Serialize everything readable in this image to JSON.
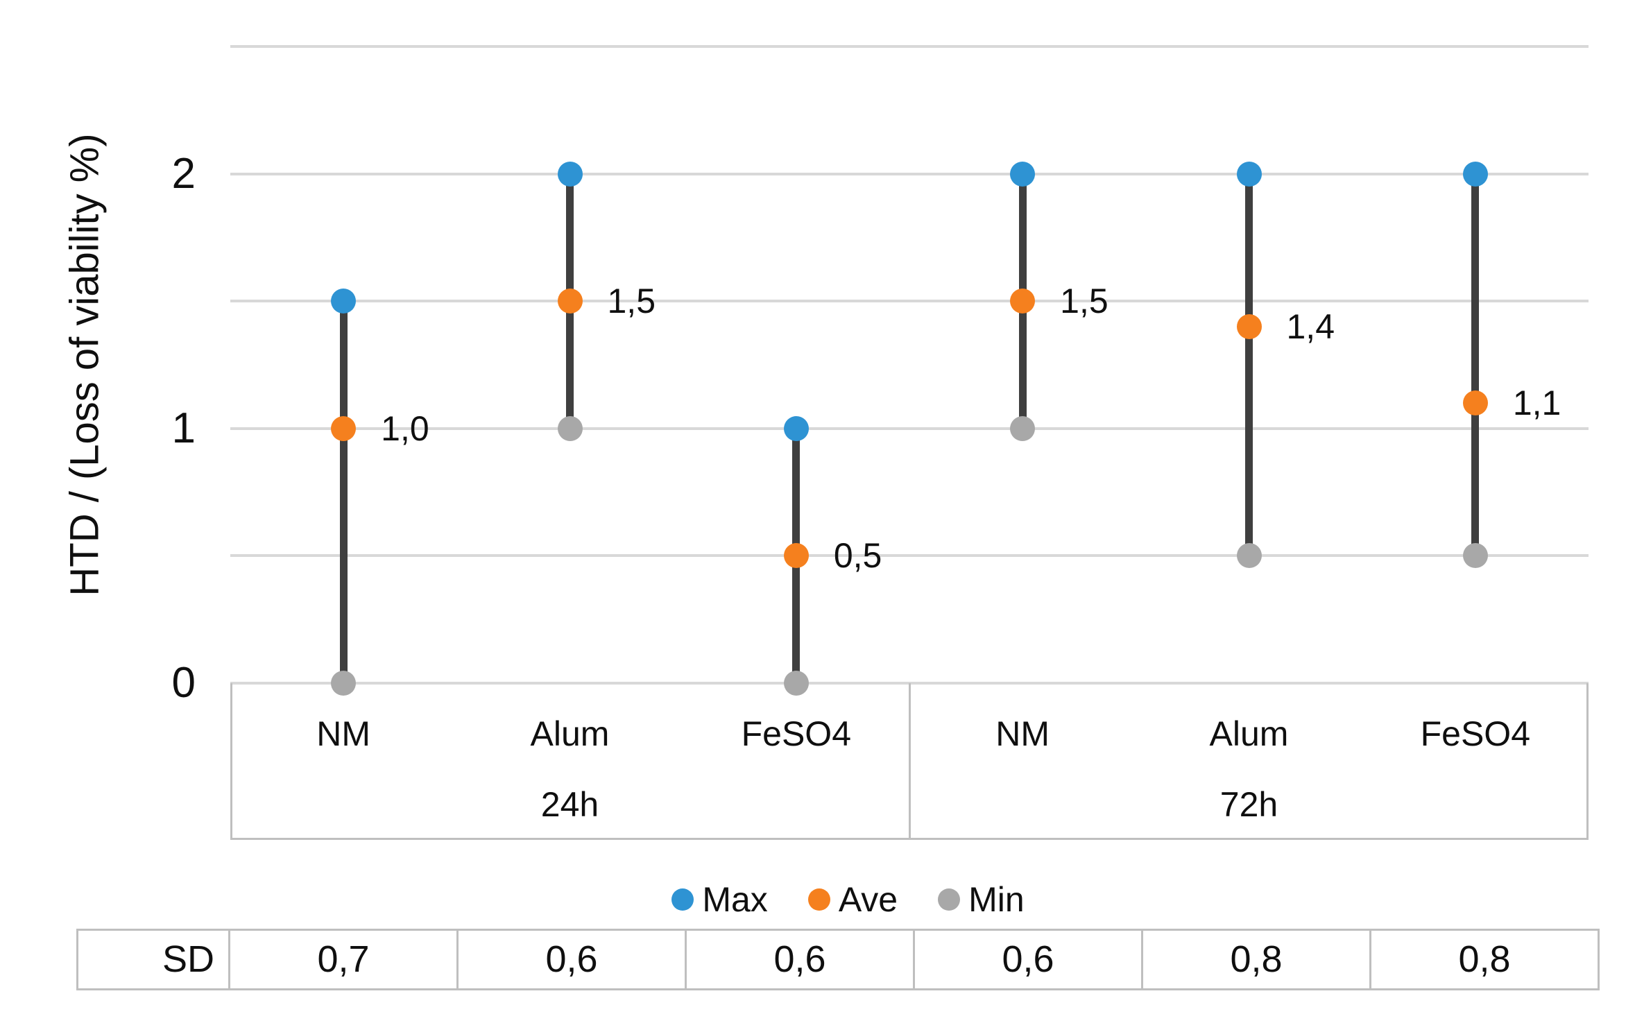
{
  "chart_data": {
    "type": "scatter",
    "variant": "high-low-dot-plot",
    "title": "",
    "ylabel": "HTD / (Loss of viability %)",
    "ylim": [
      0,
      2.5
    ],
    "grid": true,
    "gridline_values": [
      0,
      0.5,
      1,
      1.5,
      2,
      2.5
    ],
    "ytick_values": [
      0,
      1,
      2
    ],
    "ytick_labels": [
      "0",
      "1",
      "2"
    ],
    "groups": [
      {
        "label": "24h",
        "categories": [
          "NM",
          "Alum",
          "FeSO4"
        ]
      },
      {
        "label": "72h",
        "categories": [
          "NM",
          "Alum",
          "FeSO4"
        ]
      }
    ],
    "categories": [
      "NM",
      "Alum",
      "FeSO4",
      "NM",
      "Alum",
      "FeSO4"
    ],
    "series": [
      {
        "name": "Max",
        "values": [
          1.5,
          2.0,
          1.0,
          2.0,
          2.0,
          2.0
        ]
      },
      {
        "name": "Ave",
        "values": [
          1.0,
          1.5,
          0.5,
          1.5,
          1.4,
          1.1
        ]
      },
      {
        "name": "Min",
        "values": [
          0.0,
          1.0,
          0.0,
          1.0,
          0.5,
          0.5
        ]
      }
    ],
    "ave_point_labels": [
      "1,0",
      "1,5",
      "0,5",
      "1,5",
      "1,4",
      "1,1"
    ],
    "legend": [
      {
        "label": "Max",
        "color": "#2e93d3"
      },
      {
        "label": "Ave",
        "color": "#f5801e"
      },
      {
        "label": "Min",
        "color": "#a8a8a8"
      }
    ],
    "legend_position": "bottom",
    "sd_table": {
      "header": "SD",
      "values": [
        "0,7",
        "0,6",
        "0,6",
        "0,6",
        "0,8",
        "0,8"
      ]
    },
    "colors": {
      "max_dot": "#2e93d3",
      "ave_dot": "#f5801e",
      "min_dot": "#a8a8a8",
      "stem": "#3f3f3f",
      "gridline": "#d8d8d8",
      "box_border": "#bfbfbf",
      "text": "#0f0f0f"
    }
  }
}
